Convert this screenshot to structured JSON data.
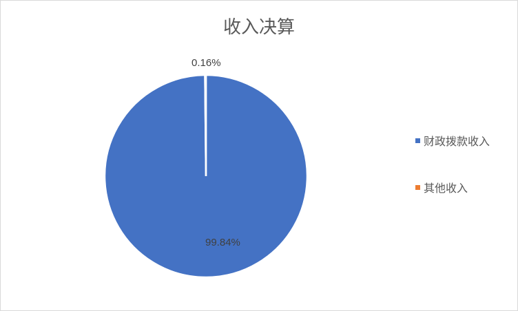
{
  "chart_data": {
    "type": "pie",
    "title": "收入决算",
    "categories": [
      "财政拨款收入",
      "其他收入"
    ],
    "values": [
      99.84,
      0.16
    ],
    "data_labels": [
      "99.84%",
      "0.16%"
    ],
    "colors": [
      "#4472C4",
      "#ED7D31"
    ],
    "legend_position": "right"
  }
}
